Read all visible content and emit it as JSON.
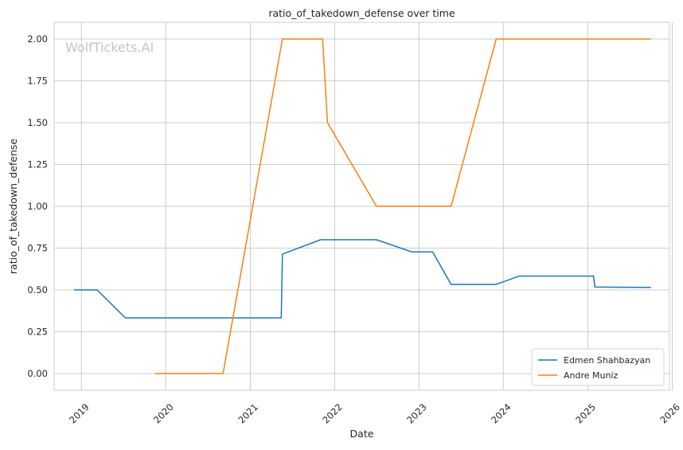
{
  "chart_data": {
    "type": "line",
    "title": "ratio_of_takedown_defense over time",
    "xlabel": "Date",
    "ylabel": "ratio_of_takedown_defense",
    "watermark": "WolfTickets.AI",
    "xlim": [
      "2018-09-05",
      "2025-12-20"
    ],
    "ylim": [
      -0.1,
      2.1
    ],
    "x_ticks": [
      "2019",
      "2020",
      "2021",
      "2022",
      "2023",
      "2024",
      "2025",
      "2026"
    ],
    "y_ticks": [
      "0.00",
      "0.25",
      "0.50",
      "0.75",
      "1.00",
      "1.25",
      "1.50",
      "1.75",
      "2.00"
    ],
    "grid": true,
    "legend_position": "bottom-right",
    "series": [
      {
        "name": "Edmen Shahbazyan",
        "color": "#1f77b4",
        "points": [
          [
            "2018-11-30",
            0.5
          ],
          [
            "2019-03-10",
            0.5
          ],
          [
            "2019-07-10",
            0.333
          ],
          [
            "2021-05-15",
            0.333
          ],
          [
            "2021-05-20",
            0.714
          ],
          [
            "2021-11-01",
            0.8
          ],
          [
            "2022-07-01",
            0.8
          ],
          [
            "2022-12-01",
            0.727
          ],
          [
            "2023-03-01",
            0.727
          ],
          [
            "2023-05-20",
            0.533
          ],
          [
            "2023-12-01",
            0.533
          ],
          [
            "2024-03-10",
            0.583
          ],
          [
            "2025-01-25",
            0.583
          ],
          [
            "2025-02-01",
            0.517
          ],
          [
            "2025-10-01",
            0.515
          ]
        ]
      },
      {
        "name": "Andre Muniz",
        "color": "#ff7f0e",
        "points": [
          [
            "2019-11-15",
            0.0
          ],
          [
            "2020-09-05",
            0.0
          ],
          [
            "2021-05-20",
            2.0
          ],
          [
            "2021-11-10",
            2.0
          ],
          [
            "2021-12-01",
            1.5
          ],
          [
            "2022-07-01",
            1.0
          ],
          [
            "2023-05-20",
            1.0
          ],
          [
            "2023-12-01",
            2.0
          ],
          [
            "2025-10-01",
            2.0
          ]
        ]
      }
    ]
  }
}
